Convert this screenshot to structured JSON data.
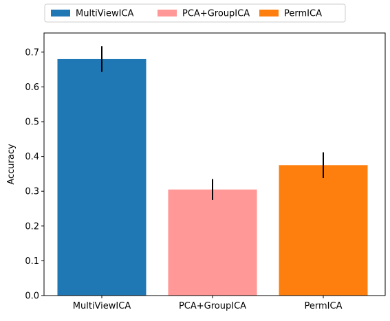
{
  "chart_data": {
    "type": "bar",
    "title": "",
    "xlabel": "",
    "ylabel": "Accuracy",
    "categories": [
      "MultiViewICA",
      "PCA+GroupICA",
      "PermICA"
    ],
    "values": [
      0.68,
      0.305,
      0.375
    ],
    "errors": [
      0.037,
      0.03,
      0.037
    ],
    "colors": [
      "#1f77b4",
      "#ff9896",
      "#ff7f0e"
    ],
    "ylim": [
      0,
      0.755
    ],
    "yticks": [
      "0.0",
      "0.1",
      "0.2",
      "0.3",
      "0.4",
      "0.5",
      "0.6",
      "0.7"
    ],
    "grid": false,
    "legend": {
      "placement": "top-center, outside plot, 3 columns",
      "entries": [
        "MultiViewICA",
        "PCA+GroupICA",
        "PermICA"
      ]
    }
  }
}
